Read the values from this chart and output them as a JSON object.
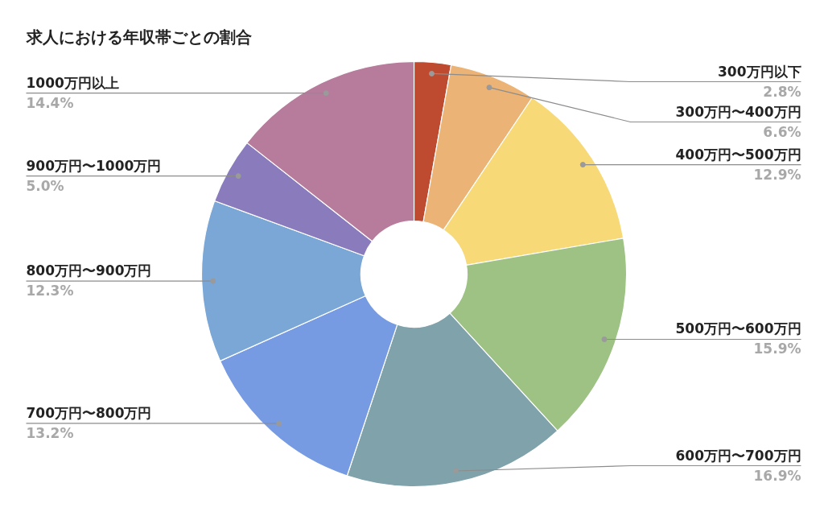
{
  "chart_data": {
    "type": "donut",
    "title": "求人における年収帯ごとの割合",
    "categories": [
      "300万円以下",
      "300万円〜400万円",
      "400万円〜500万円",
      "500万円〜600万円",
      "600万円〜700万円",
      "700万円〜800万円",
      "800万円〜900万円",
      "900万円〜1000万円",
      "1000万円以上"
    ],
    "values": [
      2.8,
      6.6,
      12.9,
      15.9,
      16.9,
      13.2,
      12.3,
      5.0,
      14.4
    ],
    "value_labels": [
      "2.8%",
      "6.6%",
      "12.9%",
      "15.9%",
      "16.9%",
      "13.2%",
      "12.3%",
      "5.0%",
      "14.4%"
    ],
    "colors": [
      "#be4b30",
      "#ebb375",
      "#f7d977",
      "#9dc284",
      "#7fa2ab",
      "#779be3",
      "#7ba7d7",
      "#8a7bbc",
      "#b77c9c"
    ]
  }
}
